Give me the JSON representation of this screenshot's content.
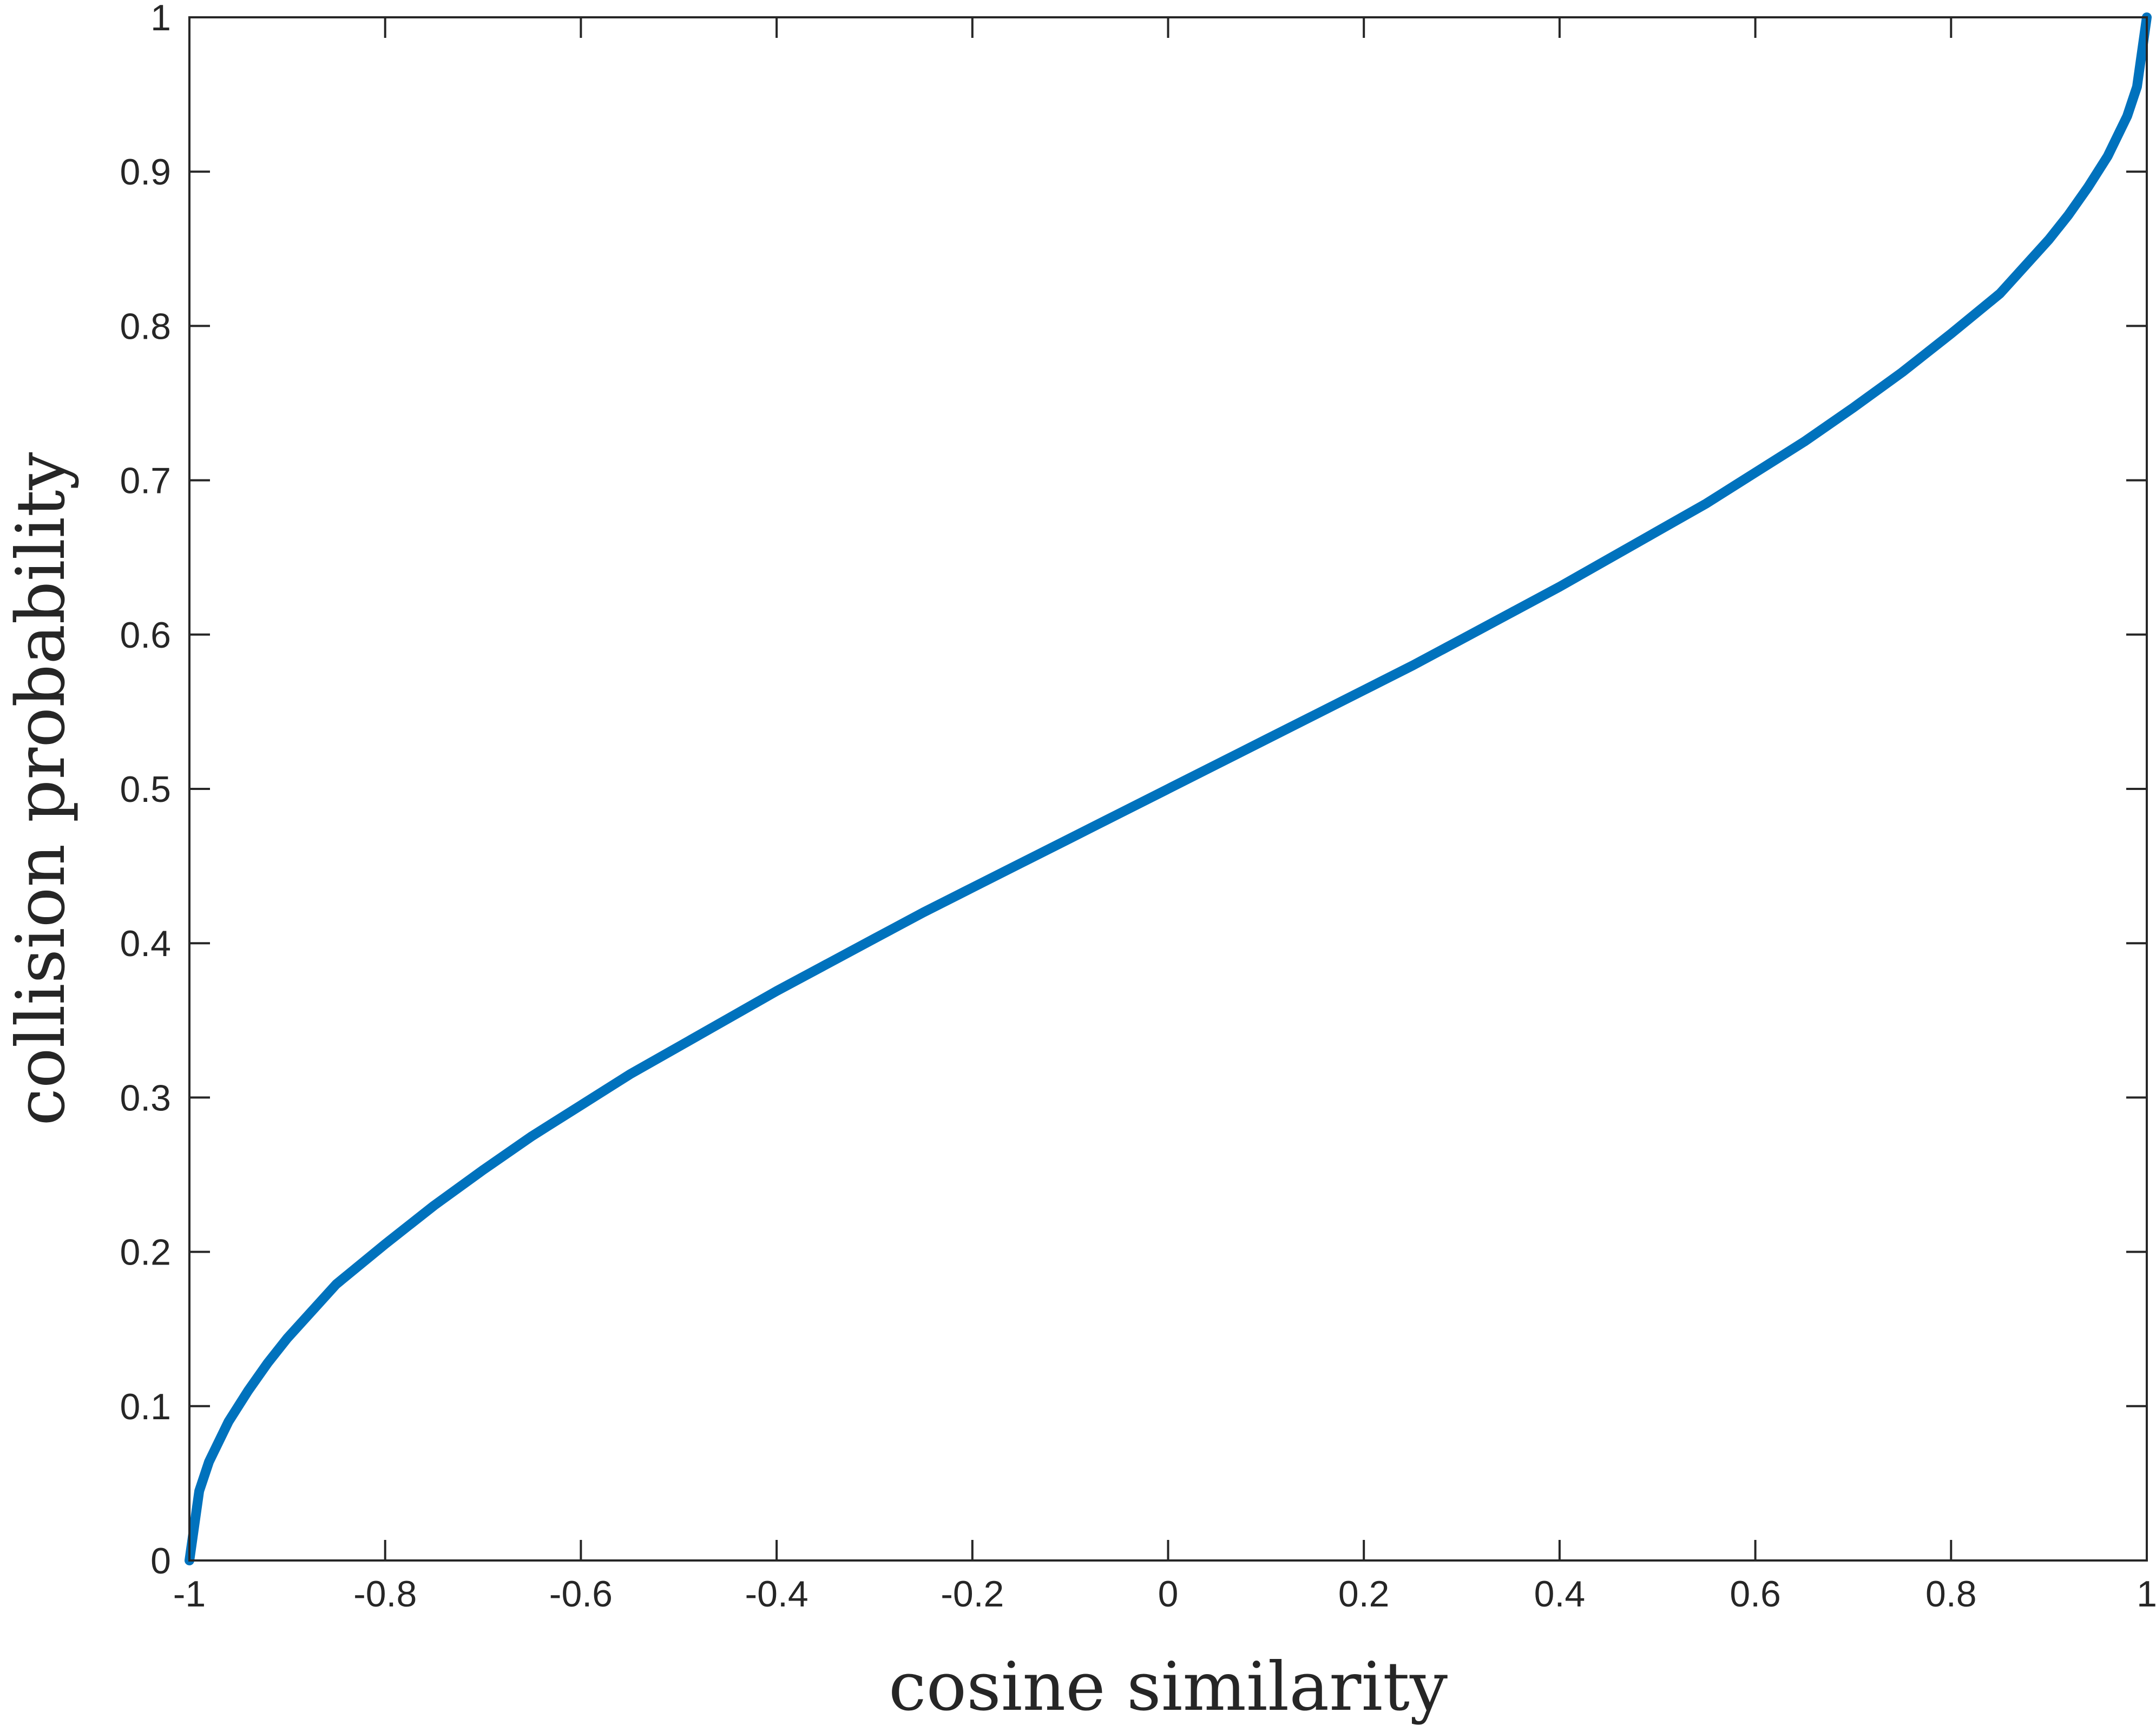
{
  "chart_data": {
    "type": "line",
    "title": "",
    "xlabel": "cosine similarity",
    "ylabel": "collision probability",
    "xlim": [
      -1,
      1
    ],
    "ylim": [
      0,
      1
    ],
    "grid": false,
    "legend": "none",
    "xticks": [
      -1,
      -0.8,
      -0.6,
      -0.4,
      -0.2,
      0,
      0.2,
      0.4,
      0.6,
      0.8,
      1
    ],
    "yticks": [
      0,
      0.1,
      0.2,
      0.3,
      0.4,
      0.5,
      0.6,
      0.7,
      0.8,
      0.9,
      1
    ],
    "xtick_labels": [
      "-1",
      "-0.8",
      "-0.6",
      "-0.4",
      "-0.2",
      "0",
      "0.2",
      "0.4",
      "0.6",
      "0.8",
      "1"
    ],
    "ytick_labels": [
      "0",
      "0.1",
      "0.2",
      "0.3",
      "0.4",
      "0.5",
      "0.6",
      "0.7",
      "0.8",
      "0.9",
      "1"
    ],
    "series": [
      {
        "color": "#0072BD",
        "x": [
          -1,
          -0.99,
          -0.98,
          -0.96,
          -0.94,
          -0.92,
          -0.9,
          -0.85,
          -0.8,
          -0.75,
          -0.7,
          -0.65,
          -0.6,
          -0.55,
          -0.5,
          -0.45,
          -0.4,
          -0.35,
          -0.3,
          -0.25,
          -0.2,
          -0.15,
          -0.1,
          -0.05,
          0,
          0.05,
          0.1,
          0.15,
          0.2,
          0.25,
          0.3,
          0.35,
          0.4,
          0.45,
          0.5,
          0.55,
          0.6,
          0.65,
          0.7,
          0.75,
          0.8,
          0.85,
          0.9,
          0.92,
          0.94,
          0.96,
          0.98,
          0.99,
          1
        ],
        "y": [
          0,
          0.045,
          0.064,
          0.09,
          0.11,
          0.128,
          0.144,
          0.179,
          0.205,
          0.23,
          0.253,
          0.275,
          0.295,
          0.315,
          0.333,
          0.351,
          0.369,
          0.386,
          0.403,
          0.42,
          0.436,
          0.452,
          0.468,
          0.484,
          0.5,
          0.516,
          0.532,
          0.548,
          0.564,
          0.58,
          0.597,
          0.614,
          0.631,
          0.649,
          0.667,
          0.685,
          0.705,
          0.725,
          0.747,
          0.77,
          0.795,
          0.821,
          0.856,
          0.872,
          0.89,
          0.91,
          0.936,
          0.955,
          1
        ]
      }
    ]
  }
}
